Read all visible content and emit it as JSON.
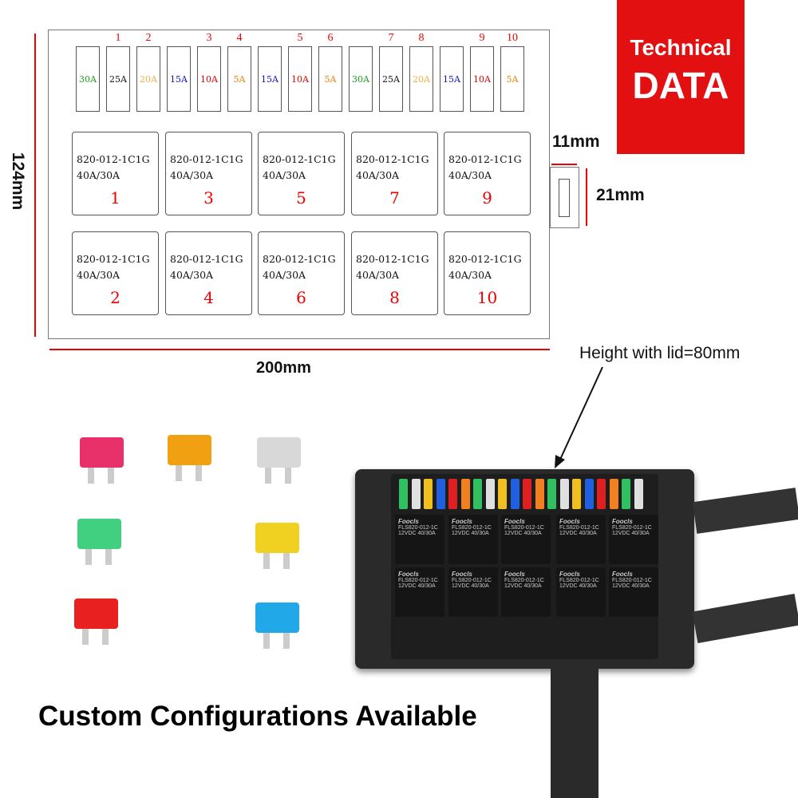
{
  "fuses": [
    {
      "rating": "30A",
      "color": "#1a9e1a"
    },
    {
      "rating": "25A",
      "color": "#111111"
    },
    {
      "rating": "20A",
      "color": "#f5b040"
    },
    {
      "rating": "15A",
      "color": "#1010cc"
    },
    {
      "rating": "10A",
      "color": "#e00000"
    },
    {
      "rating": "5A",
      "color": "#f08000"
    },
    {
      "rating": "15A",
      "color": "#1010cc"
    },
    {
      "rating": "10A",
      "color": "#e00000"
    },
    {
      "rating": "5A",
      "color": "#f08000"
    },
    {
      "rating": "30A",
      "color": "#1a9e1a"
    },
    {
      "rating": "25A",
      "color": "#111111"
    },
    {
      "rating": "20A",
      "color": "#f5b040"
    },
    {
      "rating": "15A",
      "color": "#1010cc"
    },
    {
      "rating": "10A",
      "color": "#e00000"
    },
    {
      "rating": "5A",
      "color": "#f08000"
    }
  ],
  "fuse_numbers": [
    "1",
    "2",
    "3",
    "4",
    "5",
    "6",
    "7",
    "8",
    "9",
    "10"
  ],
  "relay": {
    "model": "820-012-1C1G",
    "rating": "40A/30A"
  },
  "relay_numbers": [
    "1",
    "3",
    "5",
    "7",
    "9",
    "2",
    "4",
    "6",
    "8",
    "10"
  ],
  "dimensions": {
    "height": "124mm",
    "width": "200mm",
    "connector_width": "11mm",
    "connector_height": "21mm",
    "lid_height": "Height with lid=80mm"
  },
  "badge": {
    "line1": "Technical",
    "line2": "DATA",
    "color": "#e21010"
  },
  "caption": "Custom Configurations Available",
  "photo_fuse_colors": [
    "#e8306a",
    "#f0a010",
    "#d8d8d8",
    "#40d080",
    "#f0d020",
    "#e82020",
    "#20a8e8"
  ],
  "photo_relay_label": {
    "brand": "Foocls",
    "model": "FLS820-012-1C",
    "rating": "12VDC 40/30A"
  }
}
